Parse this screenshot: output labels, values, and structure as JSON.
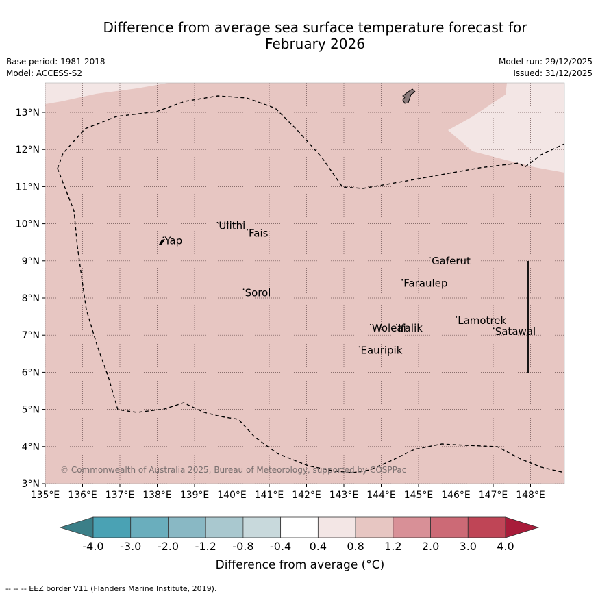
{
  "title_line1": "Difference from average sea surface temperature forecast for",
  "title_line2": "February 2026",
  "base_period": "Base period: 1981-2018",
  "model": "Model: ACCESS-S2",
  "model_run": "Model run: 29/12/2025",
  "issued": "Issued: 31/12/2025",
  "lon_labels": [
    "135°E",
    "136°E",
    "137°E",
    "138°E",
    "139°E",
    "140°E",
    "141°E",
    "142°E",
    "143°E",
    "144°E",
    "145°E",
    "146°E",
    "147°E",
    "148°E"
  ],
  "lat_labels": [
    "3°N",
    "4°N",
    "5°N",
    "6°N",
    "7°N",
    "8°N",
    "9°N",
    "10°N",
    "11°N",
    "12°N",
    "13°N"
  ],
  "places": [
    {
      "name": "Yap",
      "lon": 138.2,
      "lat": 9.45
    },
    {
      "name": "Ulithi",
      "lon": 139.65,
      "lat": 9.85
    },
    {
      "name": "Fais",
      "lon": 140.45,
      "lat": 9.65
    },
    {
      "name": "Gaferut",
      "lon": 145.35,
      "lat": 8.9
    },
    {
      "name": "Faraulep",
      "lon": 144.6,
      "lat": 8.3
    },
    {
      "name": "Sorol",
      "lon": 140.35,
      "lat": 8.05
    },
    {
      "name": "Lamotrek",
      "lon": 146.05,
      "lat": 7.3
    },
    {
      "name": "Woleai",
      "lon": 143.75,
      "lat": 7.1
    },
    {
      "name": "Ifalik",
      "lon": 144.45,
      "lat": 7.1
    },
    {
      "name": "Satawal",
      "lon": 147.05,
      "lat": 7.0
    },
    {
      "name": "Eauripik",
      "lon": 143.45,
      "lat": 6.5
    }
  ],
  "copyright": "© Commonwealth of Australia 2025, Bureau of Meteorology, supported by COSPPac",
  "colorbar": {
    "ticks": [
      "-4.0",
      "-3.0",
      "-2.0",
      "-1.2",
      "-0.8",
      "-0.4",
      "0.4",
      "0.8",
      "1.2",
      "2.0",
      "3.0",
      "4.0"
    ],
    "colors": [
      "#4aa2b4",
      "#6aaebd",
      "#89b8c4",
      "#a9c8cf",
      "#c8d9dc",
      "#ffffff",
      "#f3e6e5",
      "#e7c6c2",
      "#d89097",
      "#cc6a76",
      "#bf4556"
    ],
    "low_extend_color": "#3b7f88",
    "high_extend_color": "#a81c3a",
    "label": "Difference from average (°C)"
  },
  "map_colors": {
    "main_anomaly": "#e7c6c2",
    "lighter_anomaly": "#f3e6e5",
    "island_gray": "#8a7a7a"
  },
  "footnote": "--  --  -- EEZ border V11 (Flanders Marine Institute, 2019)."
}
